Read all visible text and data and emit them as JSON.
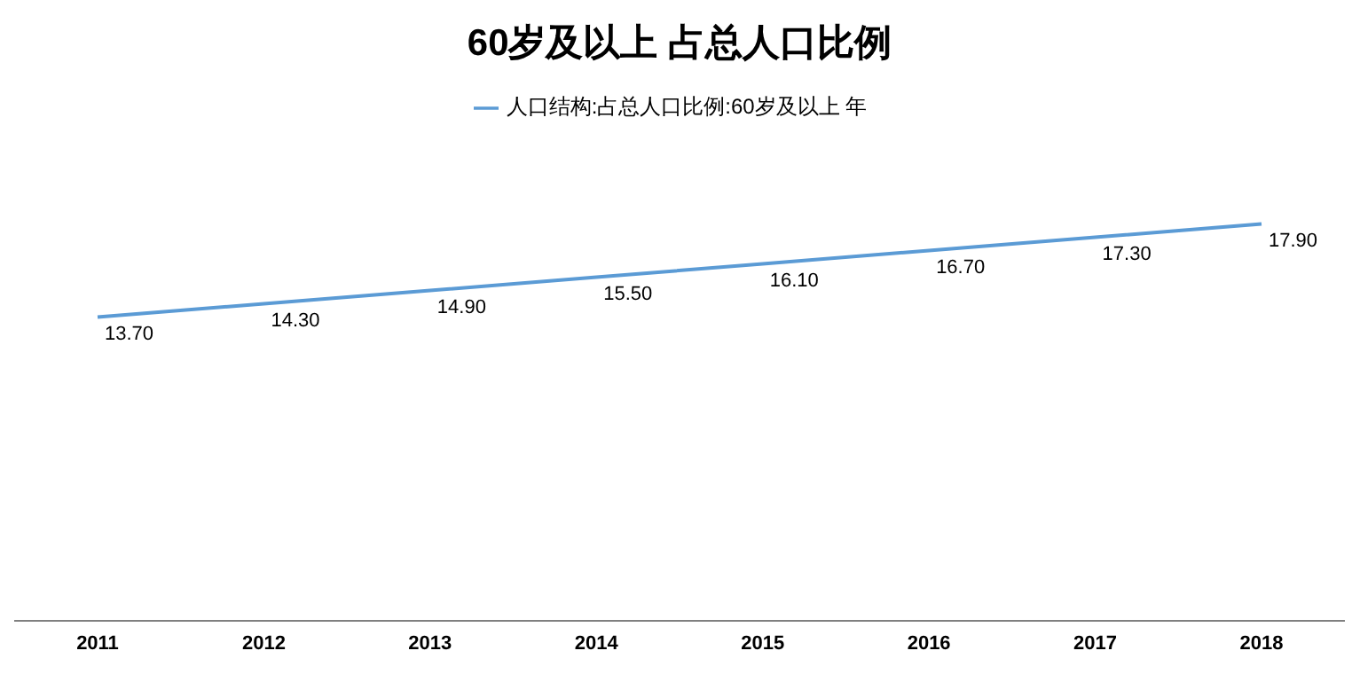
{
  "chart_data": {
    "type": "line",
    "title": "60岁及以上 占总人口比例",
    "categories": [
      "2011",
      "2012",
      "2013",
      "2014",
      "2015",
      "2016",
      "2017",
      "2018"
    ],
    "series": [
      {
        "name": "人口结构:占总人口比例:60岁及以上 年",
        "color": "#5b9bd5",
        "values": [
          13.7,
          14.3,
          14.9,
          15.5,
          16.1,
          16.7,
          17.3,
          17.9
        ],
        "value_labels": [
          "13.70",
          "14.30",
          "14.90",
          "15.50",
          "16.10",
          "16.70",
          "17.30",
          "17.90"
        ]
      }
    ],
    "legend": "top",
    "grid": false,
    "marker": "none",
    "tick_labels": "x"
  }
}
